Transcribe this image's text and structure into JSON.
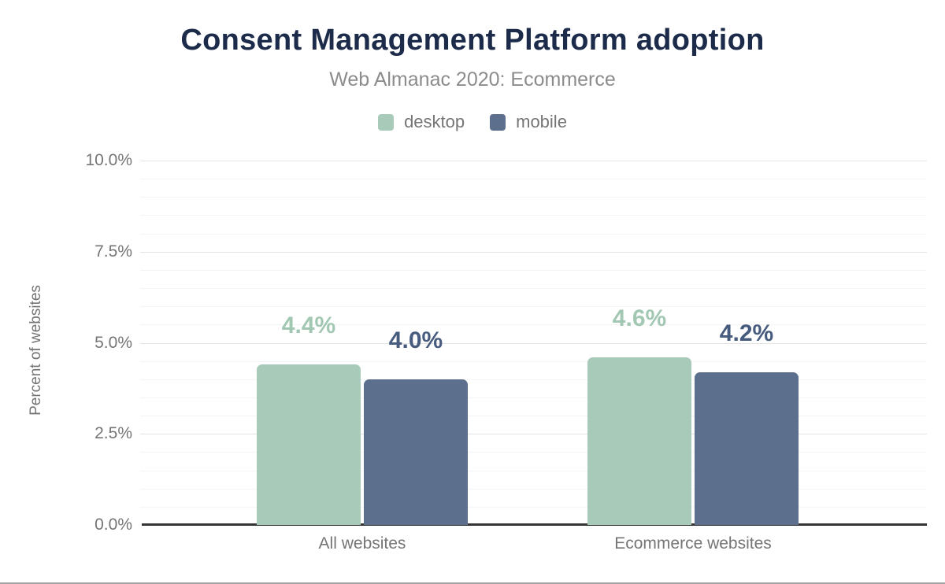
{
  "chart_data": {
    "type": "bar",
    "title": "Consent Management Platform adoption",
    "subtitle": "Web Almanac 2020: Ecommerce",
    "categories": [
      "All websites",
      "Ecommerce websites"
    ],
    "series": [
      {
        "name": "desktop",
        "values": [
          4.4,
          4.6
        ],
        "data_labels": [
          "4.4%",
          "4.6%"
        ],
        "color": "#a7cab9",
        "label_color": "#a2c7b3"
      },
      {
        "name": "mobile",
        "values": [
          4.0,
          4.2
        ],
        "data_labels": [
          "4.0%",
          "4.2%"
        ],
        "color": "#5c6f8d",
        "label_color": "#475b7e"
      }
    ],
    "xlabel": "",
    "ylabel": "Percent of websites",
    "ylim": [
      0,
      10
    ],
    "yticks": [
      {
        "value": 0,
        "label": "0.0%"
      },
      {
        "value": 2.5,
        "label": "2.5%"
      },
      {
        "value": 5,
        "label": "5.0%"
      },
      {
        "value": 7.5,
        "label": "7.5%"
      },
      {
        "value": 10,
        "label": "10.0%"
      }
    ],
    "minor_grid_step": 0.5,
    "grid": true,
    "legend_position": "top",
    "bar_corner_radius": 7
  },
  "colors": {
    "title": "#1c2b4a",
    "subtitle": "#8c8c8c",
    "axis_text": "#757575",
    "axis_line": "#333333",
    "major_gridline": "#e3e3e3",
    "minor_gridline": "#f4f4f4",
    "background": "#ffffff",
    "bottom_border": "#a2a2a2"
  }
}
